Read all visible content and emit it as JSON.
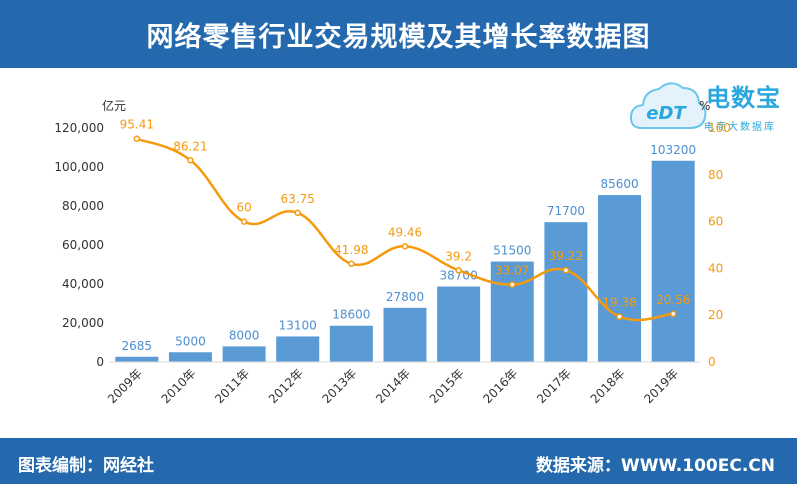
{
  "header": {
    "title": "网络零售行业交易规模及其增长率数据图"
  },
  "footer": {
    "left": "图表编制：网经社",
    "right": "数据来源：WWW.100EC.CN"
  },
  "logo": {
    "name": "电数宝",
    "sub": "电商大数据库",
    "mark": "eDT"
  },
  "colors": {
    "header_bg": "#2468ad",
    "bar": "#5b9bd5",
    "line": "#f59a0f",
    "bar_label": "#4d8fcf",
    "line_label": "#f59a0f",
    "brand": "#2aa7de"
  },
  "chart_data": {
    "type": "bar",
    "categories": [
      "2009年",
      "2010年",
      "2011年",
      "2012年",
      "2013年",
      "2014年",
      "2015年",
      "2016年",
      "2017年",
      "2018年",
      "2019年"
    ],
    "series": [
      {
        "values": [
          2685,
          5000,
          8000,
          13100,
          18600,
          27800,
          38700,
          51500,
          71700,
          85600,
          103200
        ],
        "axis": "left",
        "kind": "bar"
      },
      {
        "values": [
          95.41,
          86.21,
          60,
          63.75,
          41.98,
          49.46,
          39.2,
          33.07,
          39.22,
          19.38,
          20.56
        ],
        "axis": "right",
        "kind": "line"
      }
    ],
    "bar_labels": [
      "2685",
      "5000",
      "8000",
      "13100",
      "18600",
      "27800",
      "38700",
      "51500",
      "71700",
      "85600",
      "103200"
    ],
    "line_labels": [
      "95.41",
      "86.21",
      "60",
      "63.75",
      "41.98",
      "49.46",
      "39.2",
      "33.07",
      "39.22",
      "19.38",
      "20.56"
    ],
    "y_left": {
      "unit": "亿元",
      "lim": [
        0,
        120000
      ],
      "ticks": [
        "0",
        "20,000",
        "40,000",
        "60,000",
        "80,000",
        "100,000",
        "120,000"
      ]
    },
    "y_right": {
      "unit": "%",
      "lim": [
        0,
        100
      ],
      "ticks": [
        "0",
        "20",
        "40",
        "60",
        "80",
        "100"
      ]
    },
    "grid": false
  }
}
